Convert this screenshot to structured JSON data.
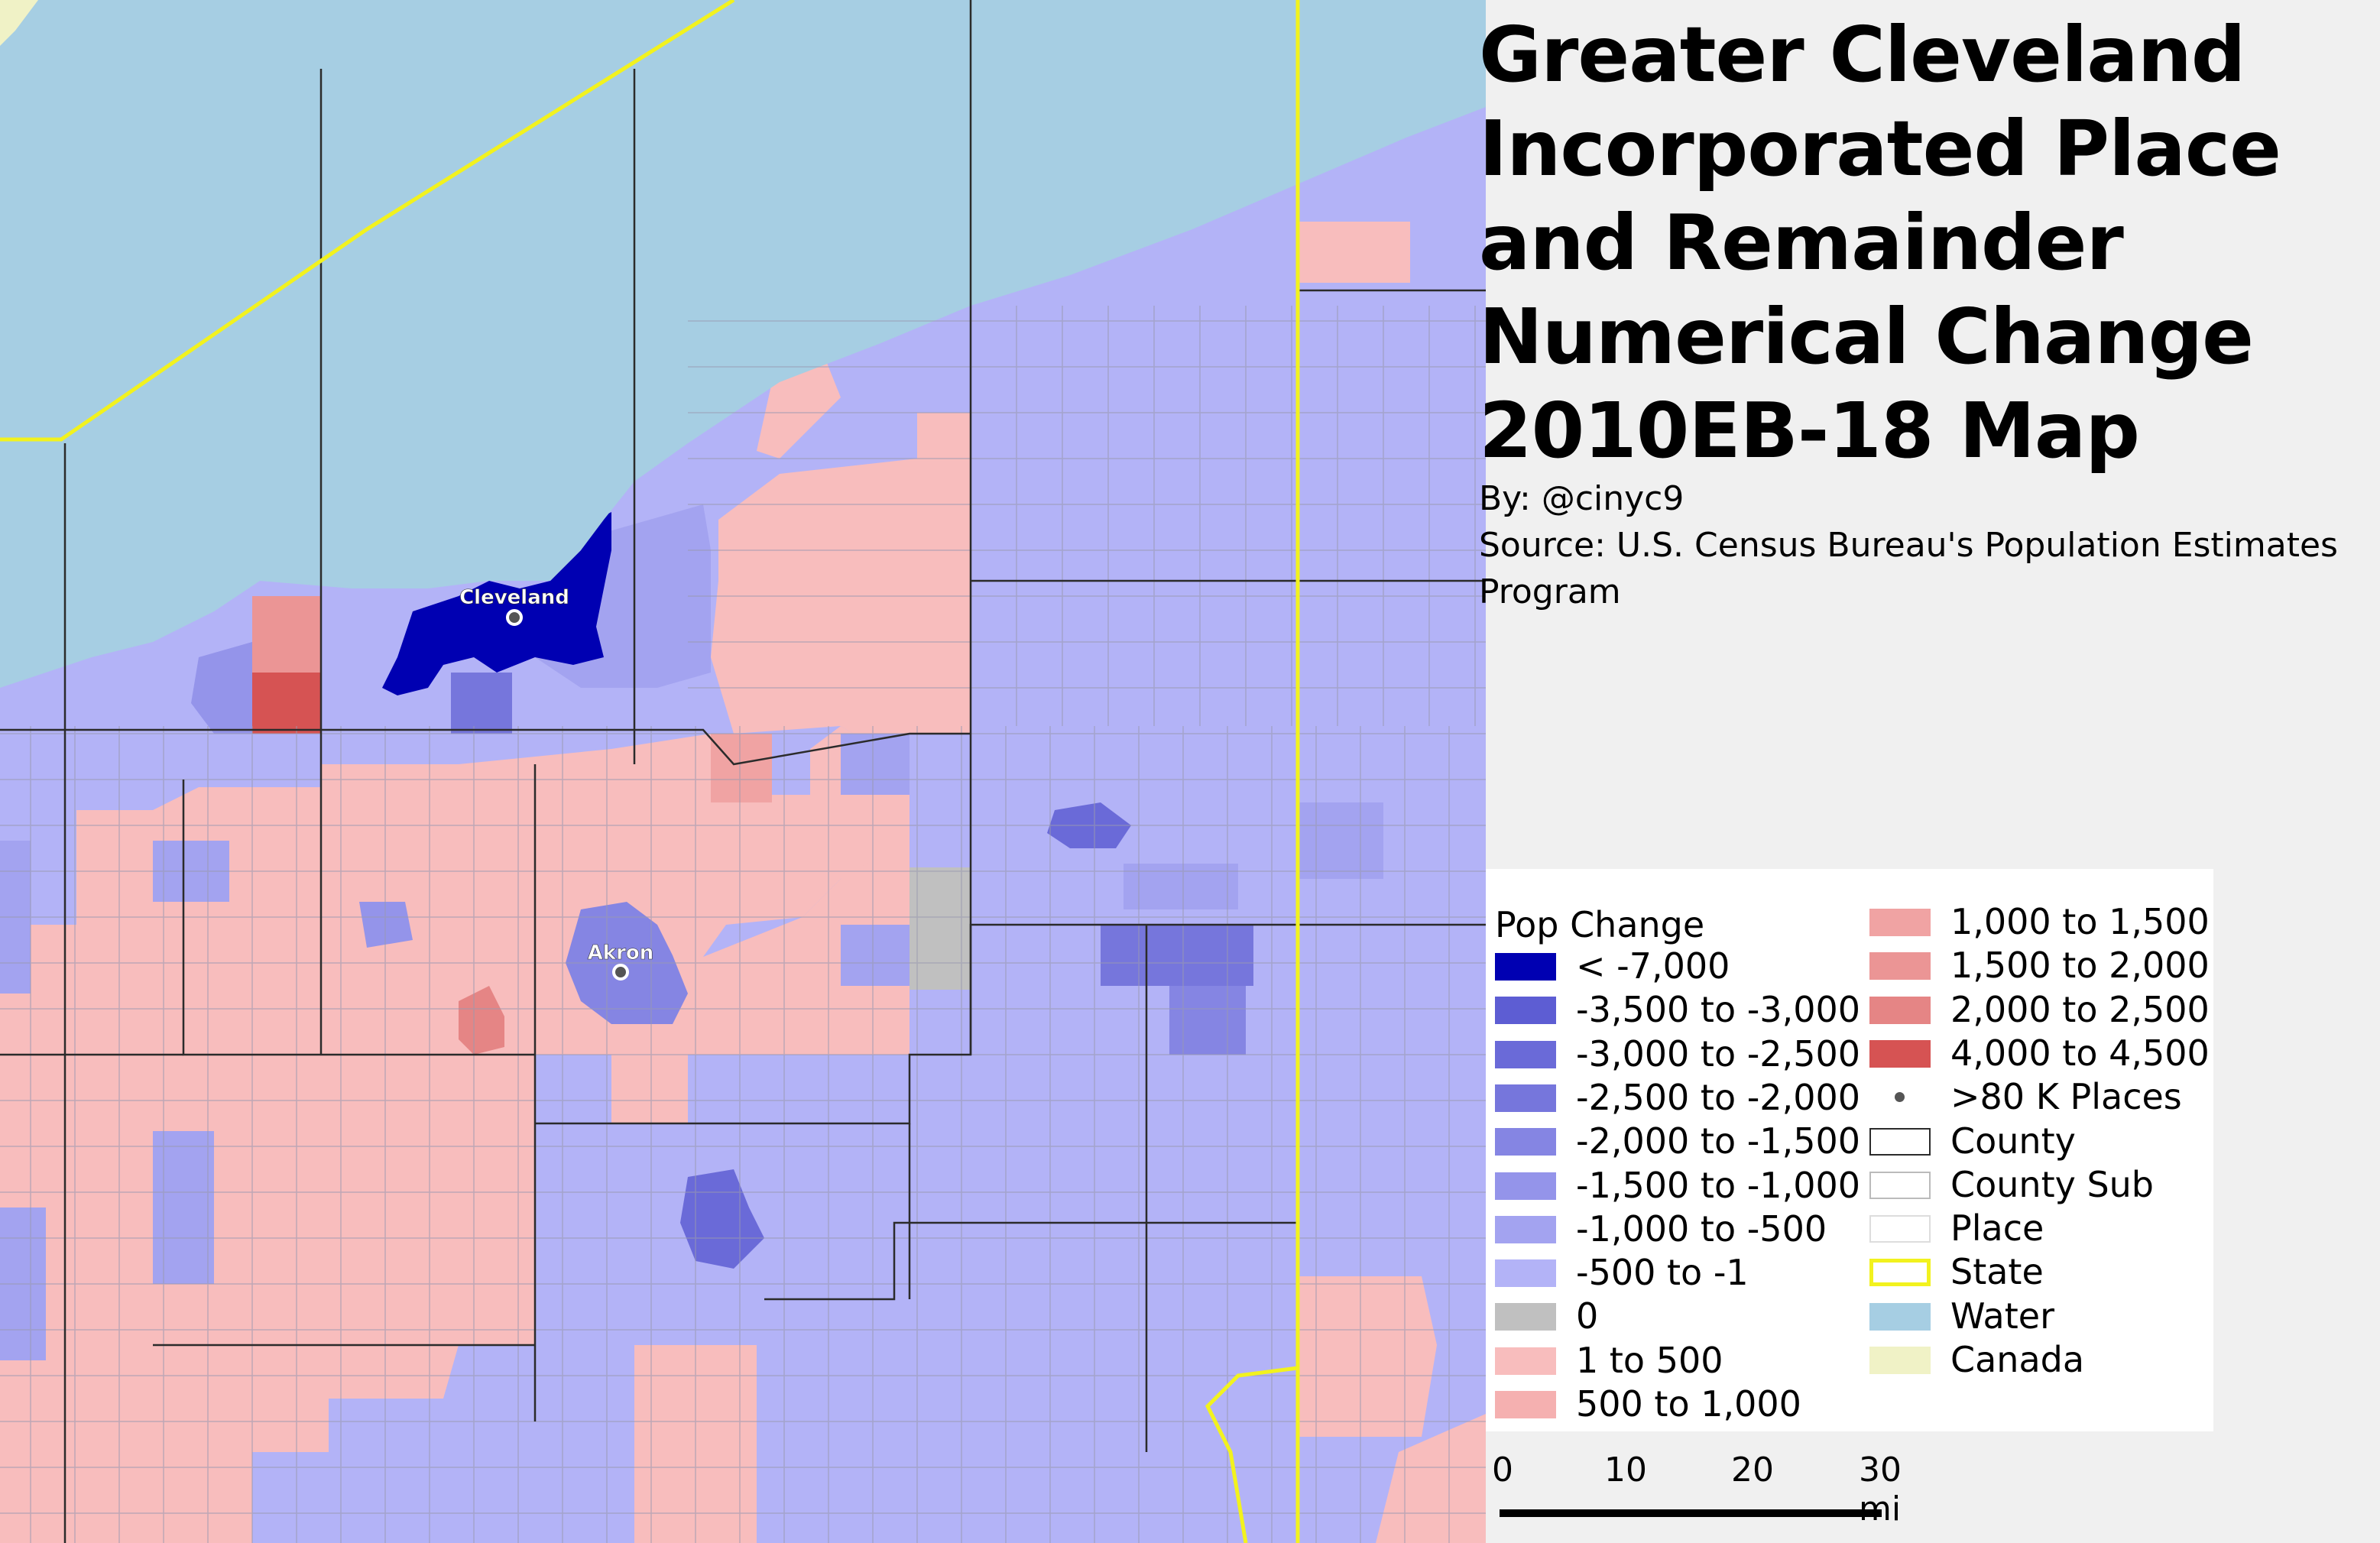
{
  "title": "Greater Cleveland Incorporated Place and Remainder Numerical Change 2010EB-18 Map",
  "byline": "By: @cinyc9",
  "source": "Source: U.S. Census Bureau's Population Estimates Program",
  "cities": [
    {
      "name": "Cleveland"
    },
    {
      "name": "Akron"
    }
  ],
  "colors": {
    "lake": "#a6cee3",
    "canada": "#f0f2c6",
    "state_line": "#f2f21e",
    "county_line": "#2b2b2b",
    "sub_line": "#9a9ab0",
    "neg_500_1": "#b3b3f7",
    "neg_1000_500": "#a3a3f0",
    "neg_1500_1000": "#9494ea",
    "neg_2000_1500": "#8585e3",
    "neg_2500_2000": "#7676dc",
    "neg_3000_2500": "#6a6ad8",
    "neg_3500_3000": "#5d5dd3",
    "lt_neg_7000": "#0000b2",
    "zero": "#c0c0c0",
    "pos_1_500": "#f8bdbd",
    "pos_500_1000": "#f5b0b0",
    "pos_1000_1500": "#f0a3a3",
    "pos_1500_2000": "#eb9595",
    "pos_2000_2500": "#e58585",
    "pos_4000_4500": "#d65353"
  },
  "legend": {
    "title": "Pop Change",
    "col1": [
      {
        "label": "< -7,000",
        "color": "#0000b2"
      },
      {
        "label": "-3,500 to -3,000",
        "color": "#5d5dd3"
      },
      {
        "label": "-3,000 to -2,500",
        "color": "#6a6ad8"
      },
      {
        "label": "-2,500 to -2,000",
        "color": "#7676dc"
      },
      {
        "label": "-2,000 to -1,500",
        "color": "#8585e3"
      },
      {
        "label": "-1,500 to -1,000",
        "color": "#9494ea"
      },
      {
        "label": "-1,000 to -500",
        "color": "#a3a3f0"
      },
      {
        "label": "-500 to -1",
        "color": "#b3b3f7"
      },
      {
        "label": "0",
        "color": "#c0c0c0"
      },
      {
        "label": "1 to 500",
        "color": "#f8bdbd"
      },
      {
        "label": "500 to 1,000",
        "color": "#f5b0b0"
      }
    ],
    "col2": [
      {
        "label": "1,000 to 1,500",
        "color": "#f0a3a3",
        "kind": "fill"
      },
      {
        "label": "1,500 to 2,000",
        "color": "#eb9595",
        "kind": "fill"
      },
      {
        "label": "2,000 to 2,500",
        "color": "#e58585",
        "kind": "fill"
      },
      {
        "label": "4,000 to 4,500",
        "color": "#d65353",
        "kind": "fill"
      },
      {
        "label": ">80 K Places",
        "color": "#555555",
        "kind": "dot"
      },
      {
        "label": "County",
        "color": "#2b2b2b",
        "kind": "outline"
      },
      {
        "label": "County Sub",
        "color": "#bbbbbb",
        "kind": "outline"
      },
      {
        "label": "Place",
        "color": "#dddddd",
        "kind": "outline"
      },
      {
        "label": "State",
        "color": "#f2f21e",
        "kind": "state"
      },
      {
        "label": "Water",
        "color": "#a6cee3",
        "kind": "fill"
      },
      {
        "label": "Canada",
        "color": "#f0f2c6",
        "kind": "fill"
      }
    ]
  },
  "scale": {
    "ticks": [
      "0",
      "10",
      "20",
      "30 mi"
    ]
  }
}
